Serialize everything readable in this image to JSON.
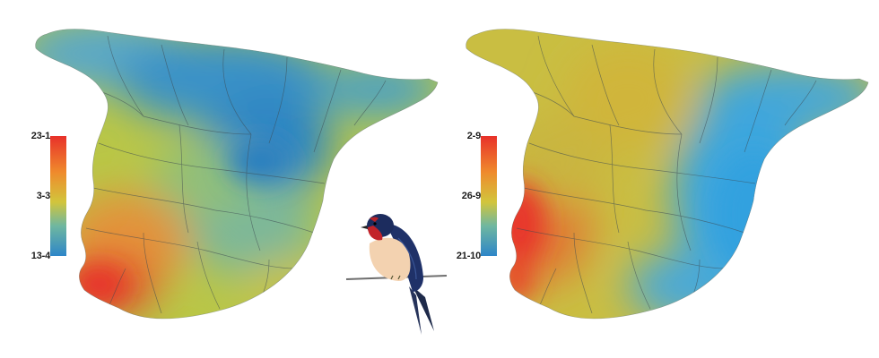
{
  "maps": [
    {
      "legend": {
        "top": "23-1",
        "middle": "3-3",
        "bottom": "13-4"
      },
      "scale_colors": {
        "high": "#e8312a",
        "mid": "#d2c53c",
        "low": "#2d86c8"
      }
    },
    {
      "legend": {
        "top": "2-9",
        "middle": "26-9",
        "bottom": "21-10"
      },
      "scale_colors": {
        "high": "#e8312a",
        "mid": "#d2c53c",
        "low": "#2d86c8"
      }
    }
  ],
  "illustration": {
    "subject": "barn-swallow-icon"
  }
}
